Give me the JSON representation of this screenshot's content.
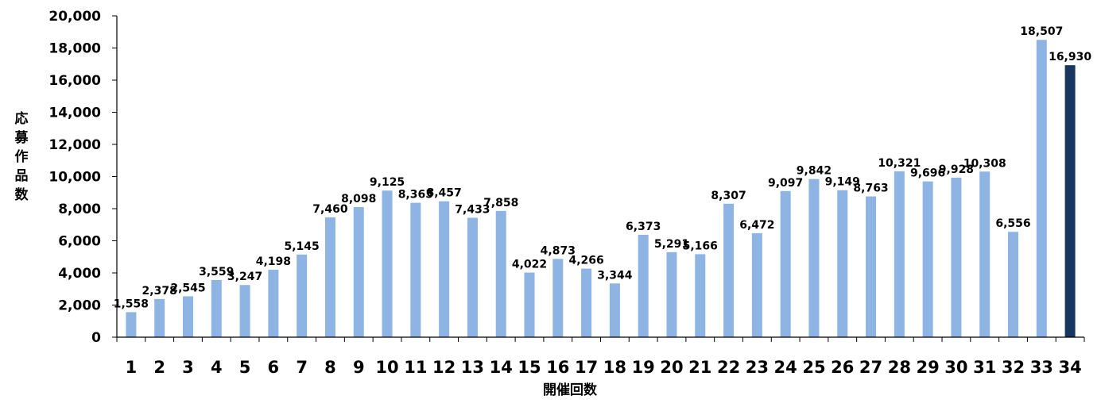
{
  "chart_data": {
    "type": "bar",
    "xlabel": "開催回数",
    "ylabel": "応募作品数",
    "ylim": [
      0,
      20000
    ],
    "yticks": [
      "0",
      "2,000",
      "4,000",
      "6,000",
      "8,000",
      "10,000",
      "12,000",
      "14,000",
      "16,000",
      "18,000",
      "20,000"
    ],
    "ytick_values": [
      0,
      2000,
      4000,
      6000,
      8000,
      10000,
      12000,
      14000,
      16000,
      18000,
      20000
    ],
    "grid": false,
    "categories": [
      "1",
      "2",
      "3",
      "4",
      "5",
      "6",
      "7",
      "8",
      "9",
      "10",
      "11",
      "12",
      "13",
      "14",
      "15",
      "16",
      "17",
      "18",
      "19",
      "20",
      "21",
      "22",
      "23",
      "24",
      "25",
      "26",
      "27",
      "28",
      "29",
      "30",
      "31",
      "32",
      "33",
      "34"
    ],
    "values": [
      1558,
      2378,
      2545,
      3559,
      3247,
      4198,
      5145,
      7460,
      8098,
      9125,
      8365,
      8457,
      7433,
      7858,
      4022,
      4873,
      4266,
      3344,
      6373,
      5291,
      5166,
      8307,
      6472,
      9097,
      9842,
      9149,
      8763,
      10321,
      9696,
      9928,
      10308,
      6556,
      18507,
      16930
    ],
    "data_labels": [
      "1,558",
      "2,378",
      "2,545",
      "3,559",
      "3,247",
      "4,198",
      "5,145",
      "7,460",
      "8,098",
      "9,125",
      "8,365",
      "8,457",
      "7,433",
      "7,858",
      "4,022",
      "4,873",
      "4,266",
      "3,344",
      "6,373",
      "5,291",
      "5,166",
      "8,307",
      "6,472",
      "9,097",
      "9,842",
      "9,149",
      "8,763",
      "10,321",
      "9,696",
      "9,928",
      "10,308",
      "6,556",
      "18,507",
      "16,930"
    ],
    "colors": {
      "bar": "#8db4e2",
      "highlight": "#17375e",
      "axis": "#000000"
    },
    "highlight_index": 33
  }
}
